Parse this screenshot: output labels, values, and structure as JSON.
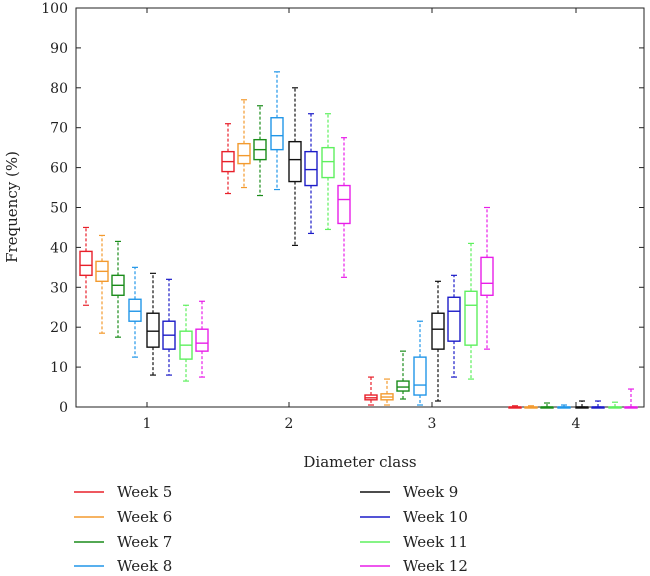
{
  "chart_data": {
    "type": "box",
    "xlabel": "Diameter class",
    "ylabel": "Frequency (%)",
    "ylim": [
      0,
      100
    ],
    "yticks": [
      0,
      10,
      20,
      30,
      40,
      50,
      60,
      70,
      80,
      90,
      100
    ],
    "categories": [
      "1",
      "2",
      "3",
      "4"
    ],
    "grid": false,
    "legend_position": "bottom",
    "series": [
      {
        "name": "Week 5",
        "color": "#e8202a",
        "boxes": [
          [
            25.5,
            33,
            35.5,
            39,
            45
          ],
          [
            53.5,
            59,
            61.5,
            64,
            71
          ],
          [
            0.5,
            1.8,
            2.3,
            3,
            7.5
          ],
          [
            0,
            0,
            0,
            0,
            0.3
          ]
        ]
      },
      {
        "name": "Week 6",
        "color": "#f39a2e",
        "boxes": [
          [
            18.5,
            31.5,
            34,
            36.5,
            43
          ],
          [
            55,
            61,
            63,
            66,
            77
          ],
          [
            0.5,
            1.8,
            2.5,
            3.3,
            7
          ],
          [
            0,
            0,
            0,
            0,
            0.3
          ]
        ]
      },
      {
        "name": "Week 7",
        "color": "#1a8c1a",
        "boxes": [
          [
            17.5,
            28,
            30.5,
            33,
            41.5
          ],
          [
            53,
            62,
            64.5,
            67,
            75.5
          ],
          [
            2,
            4,
            5,
            6.5,
            14
          ],
          [
            0,
            0,
            0,
            0,
            1
          ]
        ]
      },
      {
        "name": "Week 8",
        "color": "#2196e8",
        "boxes": [
          [
            12.5,
            21.5,
            24,
            27,
            35
          ],
          [
            54.5,
            64.5,
            68,
            72.5,
            84
          ],
          [
            0.5,
            3,
            5.5,
            12.5,
            21.5
          ],
          [
            0,
            0,
            0,
            0,
            0.5
          ]
        ]
      },
      {
        "name": "Week 9",
        "color": "#111111",
        "boxes": [
          [
            8,
            15,
            19,
            23.5,
            33.5
          ],
          [
            40.5,
            56.5,
            62,
            66.5,
            80
          ],
          [
            1.5,
            14.5,
            19.5,
            23.5,
            31.5
          ],
          [
            0,
            0,
            0,
            0,
            1.5
          ]
        ]
      },
      {
        "name": "Week 10",
        "color": "#1c1cc8",
        "boxes": [
          [
            8,
            14.5,
            18,
            21.5,
            32
          ],
          [
            43.5,
            55.5,
            59.5,
            64,
            73.5
          ],
          [
            7.5,
            16.5,
            24,
            27.5,
            33
          ],
          [
            0,
            0,
            0,
            0,
            1.5
          ]
        ]
      },
      {
        "name": "Week 11",
        "color": "#5ef05e",
        "boxes": [
          [
            6.5,
            12,
            15.5,
            19,
            25.5
          ],
          [
            44.5,
            57.5,
            61.5,
            65,
            73.5
          ],
          [
            7,
            15.5,
            25.5,
            29,
            41
          ],
          [
            0,
            0,
            0,
            0,
            1.2
          ]
        ]
      },
      {
        "name": "Week 12",
        "color": "#e81ee8",
        "boxes": [
          [
            7.5,
            14,
            16,
            19.5,
            26.5
          ],
          [
            32.5,
            46,
            52,
            55.5,
            67.5
          ],
          [
            14.5,
            28,
            31,
            37.5,
            50
          ],
          [
            0,
            0,
            0,
            0,
            4.5
          ]
        ]
      }
    ]
  }
}
